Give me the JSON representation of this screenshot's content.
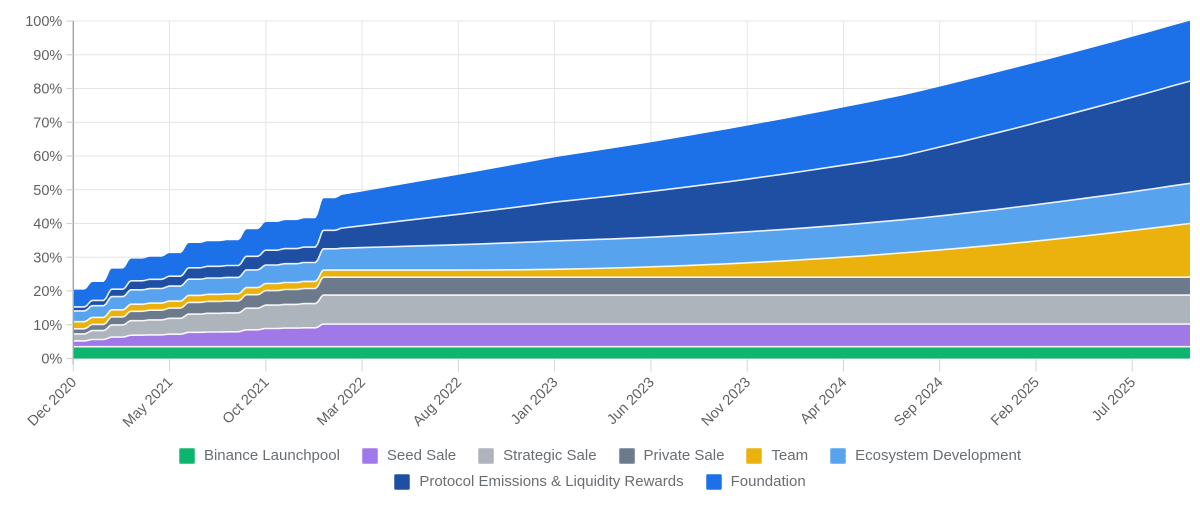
{
  "chart_data": {
    "type": "area",
    "stacked": true,
    "title": "",
    "x_axis": {
      "tick_labels": [
        "Dec 2020",
        "May 2021",
        "Oct 2021",
        "Mar 2022",
        "Aug 2022",
        "Jan 2023",
        "Jun 2023",
        "Nov 2023",
        "Apr 2024",
        "Sep 2024",
        "Feb 2025",
        "Jul 2025"
      ],
      "tick_interval_months": 5,
      "total_months": 58
    },
    "y_axis": {
      "min": 0,
      "max": 100,
      "step": 10,
      "tick_labels": [
        "0%",
        "10%",
        "20%",
        "30%",
        "40%",
        "50%",
        "60%",
        "70%",
        "80%",
        "90%",
        "100%"
      ]
    },
    "grid": true,
    "legend_position": "bottom",
    "step_until_month": 14,
    "series": [
      {
        "name": "Binance Launchpool",
        "color": "#0eb56f",
        "values": [
          3.5,
          3.5,
          3.5,
          3.5,
          3.5,
          3.5,
          3.5,
          3.5,
          3.5,
          3.5,
          3.5,
          3.5,
          3.5,
          3.5,
          3.5,
          3.5,
          3.5,
          3.5,
          3.5,
          3.5,
          3.5,
          3.5,
          3.5,
          3.5,
          3.5,
          3.5,
          3.5,
          3.5,
          3.5,
          3.5,
          3.5,
          3.5,
          3.5,
          3.5,
          3.5,
          3.5,
          3.5,
          3.5,
          3.5,
          3.5,
          3.5,
          3.5,
          3.5,
          3.5,
          3.5,
          3.5,
          3.5,
          3.5,
          3.5,
          3.5,
          3.5,
          3.5,
          3.5,
          3.5,
          3.5,
          3.5,
          3.5,
          3.5,
          3.5
        ]
      },
      {
        "name": "Seed Sale",
        "color": "#a078e8",
        "values": [
          1.7,
          2.12,
          2.85,
          3.4,
          3.5,
          3.7,
          4.25,
          4.35,
          4.4,
          5.0,
          5.4,
          5.5,
          5.6,
          6.7,
          6.7,
          6.7,
          6.7,
          6.7,
          6.7,
          6.7,
          6.7,
          6.7,
          6.7,
          6.7,
          6.7,
          6.7,
          6.7,
          6.7,
          6.7,
          6.7,
          6.7,
          6.7,
          6.7,
          6.7,
          6.7,
          6.7,
          6.7,
          6.7,
          6.7,
          6.7,
          6.7,
          6.7,
          6.7,
          6.7,
          6.7,
          6.7,
          6.7,
          6.7,
          6.7,
          6.7,
          6.7,
          6.7,
          6.7,
          6.7,
          6.7,
          6.7,
          6.7,
          6.7,
          6.7
        ]
      },
      {
        "name": "Strategic Sale",
        "color": "#adb4bc",
        "values": [
          2.1,
          2.65,
          3.6,
          4.31,
          4.44,
          4.7,
          5.42,
          5.55,
          5.61,
          6.39,
          6.91,
          7.04,
          7.17,
          8.6,
          8.6,
          8.6,
          8.6,
          8.6,
          8.6,
          8.6,
          8.6,
          8.6,
          8.6,
          8.6,
          8.6,
          8.6,
          8.6,
          8.6,
          8.6,
          8.6,
          8.6,
          8.6,
          8.6,
          8.6,
          8.6,
          8.6,
          8.6,
          8.6,
          8.6,
          8.6,
          8.6,
          8.6,
          8.6,
          8.6,
          8.6,
          8.6,
          8.6,
          8.6,
          8.6,
          8.6,
          8.6,
          8.6,
          8.6,
          8.6,
          8.6,
          8.6,
          8.6,
          8.6,
          8.6
        ]
      },
      {
        "name": "Private Sale",
        "color": "#6d7a8b",
        "values": [
          1.5,
          1.82,
          2.37,
          2.79,
          2.87,
          3.02,
          3.44,
          3.51,
          3.55,
          4.01,
          4.31,
          4.39,
          4.46,
          5.3,
          5.3,
          5.3,
          5.3,
          5.3,
          5.3,
          5.3,
          5.3,
          5.3,
          5.3,
          5.3,
          5.3,
          5.3,
          5.3,
          5.3,
          5.3,
          5.3,
          5.3,
          5.3,
          5.3,
          5.3,
          5.3,
          5.3,
          5.3,
          5.3,
          5.3,
          5.3,
          5.3,
          5.3,
          5.3,
          5.3,
          5.3,
          5.3,
          5.3,
          5.3,
          5.3,
          5.3,
          5.3,
          5.3,
          5.3,
          5.3,
          5.3,
          5.3,
          5.3,
          5.3,
          5.3
        ]
      },
      {
        "name": "Team",
        "color": "#ebb10d",
        "values": [
          2.1,
          2.1,
          2.1,
          2.1,
          2.1,
          2.1,
          2.1,
          2.1,
          2.1,
          2.1,
          2.1,
          2.1,
          2.1,
          2.1,
          2.1,
          2.1,
          2.1,
          2.1,
          2.1,
          2.1,
          2.1,
          2.11,
          2.14,
          2.19,
          2.25,
          2.34,
          2.44,
          2.57,
          2.71,
          2.87,
          3.06,
          3.26,
          3.48,
          3.72,
          3.97,
          4.25,
          4.55,
          4.86,
          5.2,
          5.55,
          5.92,
          6.31,
          6.73,
          7.16,
          7.6,
          8.07,
          8.56,
          9.07,
          9.59,
          10.14,
          10.7,
          11.29,
          11.89,
          12.52,
          13.16,
          13.82,
          14.5,
          15.21,
          15.9
        ]
      },
      {
        "name": "Ecosystem Development",
        "color": "#58a3ee",
        "values": [
          3.2,
          3.46,
          3.91,
          4.25,
          4.32,
          4.44,
          4.78,
          4.84,
          4.87,
          5.25,
          5.49,
          5.56,
          5.62,
          6.3,
          6.48,
          6.65,
          6.83,
          7.0,
          7.18,
          7.35,
          7.53,
          7.7,
          7.88,
          8.05,
          8.23,
          8.4,
          8.48,
          8.56,
          8.63,
          8.71,
          8.79,
          8.87,
          8.94,
          9.02,
          9.1,
          9.18,
          9.26,
          9.33,
          9.41,
          9.49,
          9.57,
          9.64,
          9.72,
          9.8,
          9.94,
          10.08,
          10.22,
          10.36,
          10.5,
          10.64,
          10.78,
          10.92,
          11.06,
          11.2,
          11.34,
          11.48,
          11.62,
          11.76,
          11.9
        ]
      },
      {
        "name": "Protocol Emissions & Liquidity Rewards",
        "color": "#1f4fa3",
        "values": [
          1.2,
          1.56,
          2.19,
          2.66,
          2.75,
          2.92,
          3.39,
          3.48,
          3.52,
          4.04,
          4.38,
          4.47,
          4.55,
          5.5,
          6.0,
          6.5,
          7.0,
          7.5,
          8.0,
          8.5,
          9.0,
          9.5,
          10.0,
          10.5,
          11.0,
          11.5,
          11.91,
          12.32,
          12.73,
          13.14,
          13.56,
          13.97,
          14.38,
          14.79,
          15.2,
          15.61,
          16.02,
          16.43,
          16.84,
          17.26,
          17.67,
          18.08,
          18.49,
          18.9,
          19.66,
          20.42,
          21.18,
          21.94,
          22.7,
          23.46,
          24.22,
          24.98,
          25.74,
          26.5,
          27.26,
          28.02,
          28.78,
          29.54,
          30.3
        ]
      },
      {
        "name": "Foundation",
        "color": "#1c70e8",
        "values": [
          5.1,
          5.47,
          6.11,
          6.6,
          6.68,
          6.86,
          7.34,
          7.43,
          7.48,
          8.0,
          8.36,
          8.44,
          8.53,
          9.5,
          9.82,
          10.13,
          10.45,
          10.77,
          11.08,
          11.4,
          11.72,
          12.03,
          12.35,
          12.67,
          12.98,
          13.3,
          13.56,
          13.81,
          14.07,
          14.32,
          14.58,
          14.83,
          15.09,
          15.35,
          15.6,
          15.86,
          16.11,
          16.37,
          16.62,
          16.88,
          17.13,
          17.39,
          17.64,
          17.9,
          17.9,
          17.9,
          17.9,
          17.9,
          17.9,
          17.9,
          17.9,
          17.9,
          17.9,
          17.9,
          17.9,
          17.9,
          17.9,
          17.9,
          17.9
        ]
      }
    ],
    "legend_rows": [
      [
        "Binance Launchpool",
        "Seed Sale",
        "Strategic Sale",
        "Private Sale",
        "Team",
        "Ecosystem Development"
      ],
      [
        "Protocol Emissions & Liquidity Rewards",
        "Foundation"
      ]
    ]
  },
  "theme": {
    "background": "#ffffff",
    "grid_color": "#e4e4e4",
    "axis_line_color": "#a2a2a2",
    "tick_color": "#d4d4d4",
    "axis_label_color": "#5f6163",
    "legend_text_color": "#696e73",
    "band_separator_color": "#ffffff"
  }
}
